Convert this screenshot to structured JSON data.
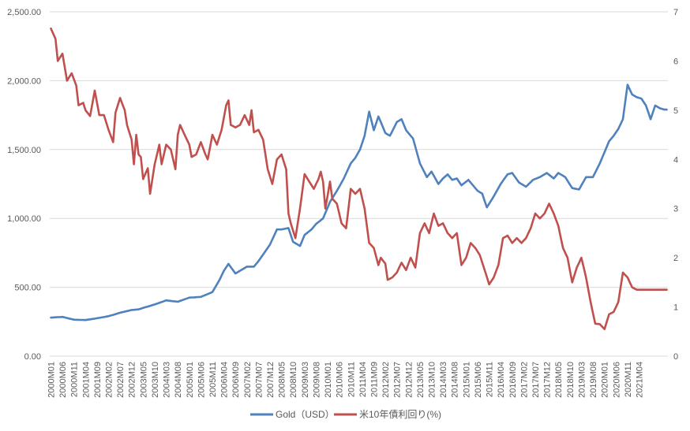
{
  "chart_data": {
    "type": "line",
    "x_tick_labels": [
      "2000M01",
      "2000M06",
      "2000M11",
      "2001M04",
      "2001M09",
      "2002M02",
      "2002M07",
      "2002M12",
      "2003M05",
      "2003M10",
      "2004M03",
      "2004M08",
      "2005M01",
      "2005M06",
      "2005M11",
      "2006M04",
      "2006M09",
      "2007M02",
      "2007M07",
      "2007M12",
      "2008M05",
      "2008M10",
      "2009M03",
      "2009M08",
      "2010M01",
      "2010M06",
      "2010M11",
      "2011M04",
      "2011M09",
      "2012M02",
      "2012M07",
      "2012M12",
      "2013M05",
      "2013M10",
      "2014M03",
      "2014M08",
      "2015M01",
      "2015M06",
      "2015M11",
      "2016M04",
      "2016M09",
      "2017M02",
      "2017M07",
      "2017M12",
      "2018M05",
      "2018M10",
      "2019M03",
      "2019M08",
      "2020M01",
      "2020M06",
      "2020M11",
      "2021M04"
    ],
    "y_left": {
      "min": 0,
      "max": 2500,
      "step": 500,
      "tick_labels": [
        "0.00",
        "500.00",
        "1,000.00",
        "1,500.00",
        "2,000.00",
        "2,500.00"
      ]
    },
    "y_right": {
      "min": 0,
      "max": 7,
      "step": 1,
      "tick_labels": [
        "0",
        "1",
        "2",
        "3",
        "4",
        "5",
        "6",
        "7"
      ]
    },
    "grid": "horizontal",
    "legend_position": "bottom",
    "series": [
      {
        "name": "Gold（USD）",
        "axis": "left",
        "color": "#4F81BD",
        "keypoints": [
          [
            0,
            280
          ],
          [
            5,
            285
          ],
          [
            10,
            265
          ],
          [
            15,
            262
          ],
          [
            20,
            275
          ],
          [
            25,
            290
          ],
          [
            30,
            315
          ],
          [
            35,
            335
          ],
          [
            38,
            340
          ],
          [
            42,
            360
          ],
          [
            45,
            375
          ],
          [
            50,
            405
          ],
          [
            55,
            395
          ],
          [
            60,
            425
          ],
          [
            65,
            430
          ],
          [
            70,
            465
          ],
          [
            73,
            550
          ],
          [
            75,
            620
          ],
          [
            77,
            670
          ],
          [
            80,
            600
          ],
          [
            85,
            650
          ],
          [
            88,
            650
          ],
          [
            90,
            690
          ],
          [
            95,
            810
          ],
          [
            98,
            920
          ],
          [
            100,
            920
          ],
          [
            103,
            930
          ],
          [
            105,
            830
          ],
          [
            108,
            800
          ],
          [
            110,
            880
          ],
          [
            113,
            920
          ],
          [
            115,
            960
          ],
          [
            118,
            1000
          ],
          [
            121,
            1120
          ],
          [
            124,
            1200
          ],
          [
            127,
            1290
          ],
          [
            130,
            1400
          ],
          [
            132,
            1440
          ],
          [
            134,
            1500
          ],
          [
            136,
            1600
          ],
          [
            138,
            1775
          ],
          [
            140,
            1640
          ],
          [
            142,
            1740
          ],
          [
            145,
            1620
          ],
          [
            147,
            1600
          ],
          [
            150,
            1700
          ],
          [
            152,
            1720
          ],
          [
            154,
            1640
          ],
          [
            157,
            1580
          ],
          [
            160,
            1400
          ],
          [
            163,
            1300
          ],
          [
            165,
            1340
          ],
          [
            168,
            1250
          ],
          [
            170,
            1290
          ],
          [
            172,
            1320
          ],
          [
            174,
            1280
          ],
          [
            176,
            1290
          ],
          [
            178,
            1240
          ],
          [
            181,
            1280
          ],
          [
            183,
            1240
          ],
          [
            185,
            1200
          ],
          [
            187,
            1180
          ],
          [
            189,
            1080
          ],
          [
            192,
            1160
          ],
          [
            195,
            1250
          ],
          [
            198,
            1320
          ],
          [
            200,
            1330
          ],
          [
            203,
            1260
          ],
          [
            206,
            1230
          ],
          [
            209,
            1280
          ],
          [
            212,
            1300
          ],
          [
            215,
            1330
          ],
          [
            218,
            1290
          ],
          [
            220,
            1330
          ],
          [
            223,
            1300
          ],
          [
            226,
            1220
          ],
          [
            229,
            1210
          ],
          [
            232,
            1300
          ],
          [
            235,
            1300
          ],
          [
            238,
            1400
          ],
          [
            240,
            1480
          ],
          [
            242,
            1560
          ],
          [
            244,
            1600
          ],
          [
            246,
            1650
          ],
          [
            248,
            1720
          ],
          [
            250,
            1970
          ],
          [
            252,
            1900
          ],
          [
            254,
            1880
          ],
          [
            256,
            1870
          ],
          [
            258,
            1820
          ],
          [
            260,
            1720
          ],
          [
            262,
            1820
          ],
          [
            264,
            1800
          ],
          [
            266,
            1790
          ]
        ]
      },
      {
        "name": "米10年債利回り(%)",
        "axis": "right",
        "color": "#C0504D",
        "keypoints": [
          [
            0,
            6.66
          ],
          [
            2,
            6.45
          ],
          [
            3,
            6.0
          ],
          [
            5,
            6.15
          ],
          [
            7,
            5.6
          ],
          [
            9,
            5.75
          ],
          [
            11,
            5.5
          ],
          [
            12,
            5.1
          ],
          [
            14,
            5.15
          ],
          [
            15,
            5.0
          ],
          [
            17,
            4.88
          ],
          [
            19,
            5.4
          ],
          [
            21,
            4.9
          ],
          [
            23,
            4.9
          ],
          [
            25,
            4.6
          ],
          [
            27,
            4.35
          ],
          [
            28,
            4.95
          ],
          [
            30,
            5.25
          ],
          [
            32,
            5.0
          ],
          [
            33,
            4.7
          ],
          [
            35,
            4.4
          ],
          [
            36,
            3.9
          ],
          [
            37,
            4.5
          ],
          [
            38,
            4.1
          ],
          [
            39,
            4.05
          ],
          [
            40,
            3.6
          ],
          [
            42,
            3.82
          ],
          [
            43,
            3.3
          ],
          [
            45,
            3.9
          ],
          [
            47,
            4.3
          ],
          [
            48,
            3.9
          ],
          [
            50,
            4.3
          ],
          [
            52,
            4.2
          ],
          [
            54,
            3.8
          ],
          [
            55,
            4.5
          ],
          [
            56,
            4.7
          ],
          [
            58,
            4.5
          ],
          [
            60,
            4.3
          ],
          [
            61,
            4.05
          ],
          [
            63,
            4.1
          ],
          [
            65,
            4.35
          ],
          [
            67,
            4.1
          ],
          [
            68,
            4.0
          ],
          [
            70,
            4.5
          ],
          [
            72,
            4.3
          ],
          [
            74,
            4.6
          ],
          [
            76,
            5.1
          ],
          [
            77,
            5.2
          ],
          [
            78,
            4.7
          ],
          [
            80,
            4.65
          ],
          [
            82,
            4.7
          ],
          [
            84,
            4.9
          ],
          [
            86,
            4.7
          ],
          [
            87,
            5.0
          ],
          [
            88,
            4.55
          ],
          [
            90,
            4.6
          ],
          [
            92,
            4.4
          ],
          [
            94,
            3.8
          ],
          [
            96,
            3.5
          ],
          [
            98,
            4.0
          ],
          [
            100,
            4.1
          ],
          [
            102,
            3.8
          ],
          [
            103,
            2.9
          ],
          [
            104,
            2.7
          ],
          [
            106,
            2.4
          ],
          [
            108,
            3.0
          ],
          [
            110,
            3.7
          ],
          [
            112,
            3.55
          ],
          [
            114,
            3.4
          ],
          [
            116,
            3.6
          ],
          [
            117,
            3.75
          ],
          [
            118,
            3.55
          ],
          [
            119,
            3.0
          ],
          [
            121,
            3.55
          ],
          [
            122,
            3.2
          ],
          [
            124,
            3.1
          ],
          [
            126,
            2.7
          ],
          [
            128,
            2.6
          ],
          [
            130,
            3.4
          ],
          [
            132,
            3.3
          ],
          [
            134,
            3.4
          ],
          [
            136,
            3.0
          ],
          [
            138,
            2.3
          ],
          [
            140,
            2.2
          ],
          [
            142,
            1.85
          ],
          [
            143,
            2.0
          ],
          [
            145,
            1.88
          ],
          [
            146,
            1.55
          ],
          [
            148,
            1.6
          ],
          [
            150,
            1.7
          ],
          [
            152,
            1.9
          ],
          [
            154,
            1.75
          ],
          [
            156,
            2.0
          ],
          [
            158,
            1.8
          ],
          [
            160,
            2.5
          ],
          [
            162,
            2.7
          ],
          [
            164,
            2.5
          ],
          [
            166,
            2.9
          ],
          [
            168,
            2.65
          ],
          [
            170,
            2.7
          ],
          [
            172,
            2.5
          ],
          [
            174,
            2.4
          ],
          [
            176,
            2.5
          ],
          [
            178,
            1.85
          ],
          [
            180,
            2.0
          ],
          [
            182,
            2.3
          ],
          [
            184,
            2.2
          ],
          [
            186,
            2.05
          ],
          [
            188,
            1.76
          ],
          [
            190,
            1.46
          ],
          [
            192,
            1.6
          ],
          [
            194,
            1.85
          ],
          [
            196,
            2.4
          ],
          [
            198,
            2.45
          ],
          [
            200,
            2.3
          ],
          [
            202,
            2.4
          ],
          [
            204,
            2.3
          ],
          [
            206,
            2.4
          ],
          [
            208,
            2.6
          ],
          [
            210,
            2.9
          ],
          [
            212,
            2.8
          ],
          [
            214,
            2.9
          ],
          [
            216,
            3.1
          ],
          [
            218,
            2.9
          ],
          [
            220,
            2.65
          ],
          [
            222,
            2.2
          ],
          [
            224,
            2.0
          ],
          [
            226,
            1.5
          ],
          [
            228,
            1.8
          ],
          [
            230,
            2.0
          ],
          [
            232,
            1.6
          ],
          [
            234,
            1.1
          ],
          [
            236,
            0.66
          ],
          [
            238,
            0.65
          ],
          [
            240,
            0.55
          ],
          [
            242,
            0.85
          ],
          [
            244,
            0.9
          ],
          [
            246,
            1.1
          ],
          [
            248,
            1.7
          ],
          [
            250,
            1.6
          ],
          [
            252,
            1.4
          ],
          [
            254,
            1.35
          ]
        ]
      }
    ]
  }
}
